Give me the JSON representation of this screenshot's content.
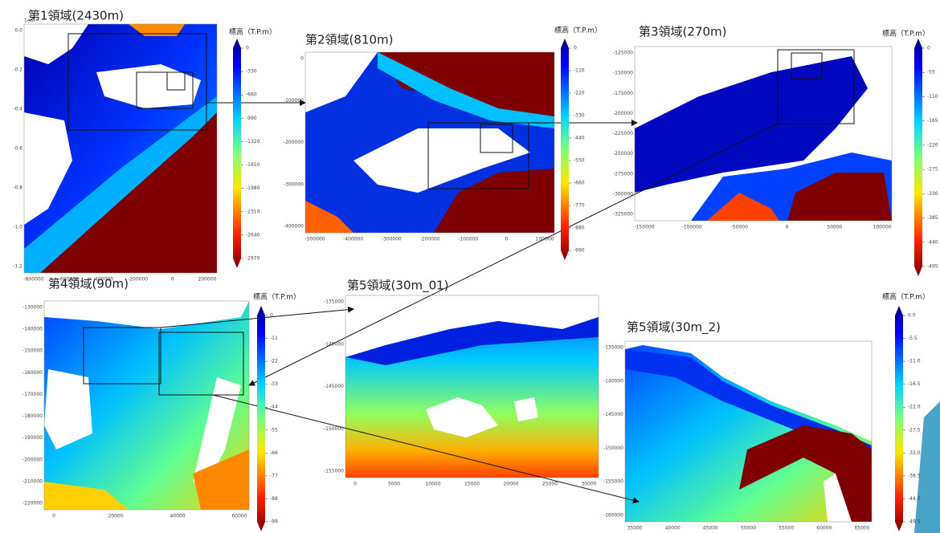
{
  "panels": [
    {
      "title": "第1領域(2430m)",
      "colorbar_label": "標高（T.P.m）",
      "colorbar_ticks": [
        "0",
        "-330",
        "-660",
        "-990",
        "-1320",
        "-1650",
        "-1980",
        "-2310",
        "-2640",
        "-2970"
      ],
      "axis_offset": "1e6",
      "yticks": [
        "0.0",
        "-0.2",
        "-0.4",
        "-0.6",
        "-0.8",
        "-1.0",
        "-1.2"
      ],
      "xticks": [
        "-800000",
        "-600000",
        "-400000",
        "-200000",
        "0",
        "200000"
      ]
    },
    {
      "title": "第2領域(810m)",
      "colorbar_label": "標高（T.P.m）",
      "colorbar_ticks": [
        "0",
        "-110",
        "-220",
        "-330",
        "-440",
        "-550",
        "-660",
        "-770",
        "-880",
        "-990"
      ],
      "yticks": [
        "0",
        "-100000",
        "-200000",
        "-300000",
        "-400000"
      ],
      "xticks": [
        "-500000",
        "-400000",
        "-300000",
        "-200000",
        "-100000",
        "0",
        "100000"
      ]
    },
    {
      "title": "第3領域(270m)",
      "colorbar_label": "標高（T.P.m）",
      "colorbar_ticks": [
        "0",
        "-55",
        "-110",
        "-165",
        "-220",
        "-275",
        "-330",
        "-385",
        "-440",
        "-495"
      ],
      "yticks": [
        "-125000",
        "-150000",
        "-175000",
        "-200000",
        "-225000",
        "-250000",
        "-275000",
        "-300000",
        "-325000"
      ],
      "xticks": [
        "-150000",
        "-100000",
        "-50000",
        "0",
        "50000",
        "100000"
      ]
    },
    {
      "title": "第4領域(90m)",
      "colorbar_label": "標高（T.P.m）",
      "colorbar_ticks": [
        "0",
        "-11",
        "-22",
        "-33",
        "-44",
        "-55",
        "-66",
        "-77",
        "-88",
        "-99"
      ],
      "yticks": [
        "-130000",
        "-140000",
        "-150000",
        "-160000",
        "-170000",
        "-180000",
        "-190000",
        "-200000",
        "-210000",
        "-220000"
      ],
      "xticks": [
        "0",
        "20000",
        "40000",
        "60000"
      ]
    },
    {
      "title": "第5領域(30m_01)",
      "yticks": [
        "-135000",
        "-140000",
        "-145000",
        "-150000",
        "-155000"
      ],
      "xticks": [
        "0",
        "5000",
        "10000",
        "15000",
        "20000",
        "25000",
        "30000"
      ]
    },
    {
      "title": "第5領域(30m_2)",
      "colorbar_label": "標高（T.P.m）",
      "colorbar_ticks": [
        "0.0",
        "-5.5",
        "-11.0",
        "-16.5",
        "-22.0",
        "-27.5",
        "-33.0",
        "-38.5",
        "-44.0",
        "-49.5"
      ],
      "yticks": [
        "-135000",
        "-140000",
        "-145000",
        "-150000",
        "-155000",
        "-160000"
      ],
      "xticks": [
        "35000",
        "40000",
        "45000",
        "50000",
        "55000",
        "60000",
        "65000"
      ]
    }
  ]
}
